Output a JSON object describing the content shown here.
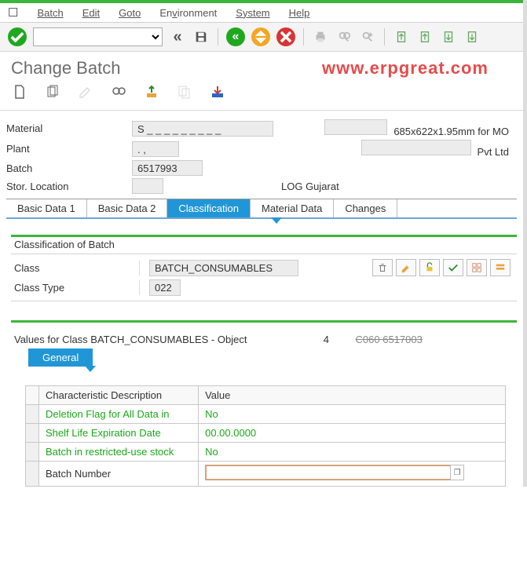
{
  "menu": {
    "items": [
      "Batch",
      "Edit",
      "Goto",
      "Environment",
      "System",
      "Help"
    ],
    "underline_idx": [
      0,
      0,
      0,
      2,
      0,
      0
    ]
  },
  "page": {
    "title": "Change Batch",
    "watermark": "www.erpgreat.com"
  },
  "header": {
    "material": {
      "label": "Material",
      "value": "S _ _ _ _ _ _ _ _ _",
      "desc": "685x622x1.95mm for MO"
    },
    "plant": {
      "label": "Plant",
      "value": ". ,",
      "desc": "Pvt Ltd"
    },
    "batch": {
      "label": "Batch",
      "value": "6517993"
    },
    "storloc": {
      "label": "Stor. Location",
      "value": "",
      "desc": "LOG Gujarat"
    }
  },
  "tabs": [
    "Basic Data 1",
    "Basic Data 2",
    "Classification",
    "Material Data",
    "Changes"
  ],
  "active_tab": 2,
  "classification": {
    "section_title": "Classification of Batch",
    "class": {
      "label": "Class",
      "value": "BATCH_CONSUMABLES"
    },
    "class_type": {
      "label": "Class Type",
      "value": "022"
    },
    "values_title": "Values for Class BATCH_CONSUMABLES - Object  ",
    "values_suffix_num": "4",
    "values_suffix_code": "C060 6517003",
    "subtab": "General",
    "columns": [
      "Characteristic Description",
      "Value"
    ],
    "rows": [
      {
        "k": "Deletion Flag for All Data in",
        "v": "No"
      },
      {
        "k": "Shelf Life Expiration Date",
        "v": "00.00.0000"
      },
      {
        "k": "Batch in restricted-use stock",
        "v": "No"
      },
      {
        "k": "Batch Number",
        "v": ""
      }
    ],
    "selected_row": 3
  },
  "colors": {
    "accent_green": "#3cb53c",
    "tab_blue": "#2196d6",
    "watermark_red": "#e64b4b"
  }
}
